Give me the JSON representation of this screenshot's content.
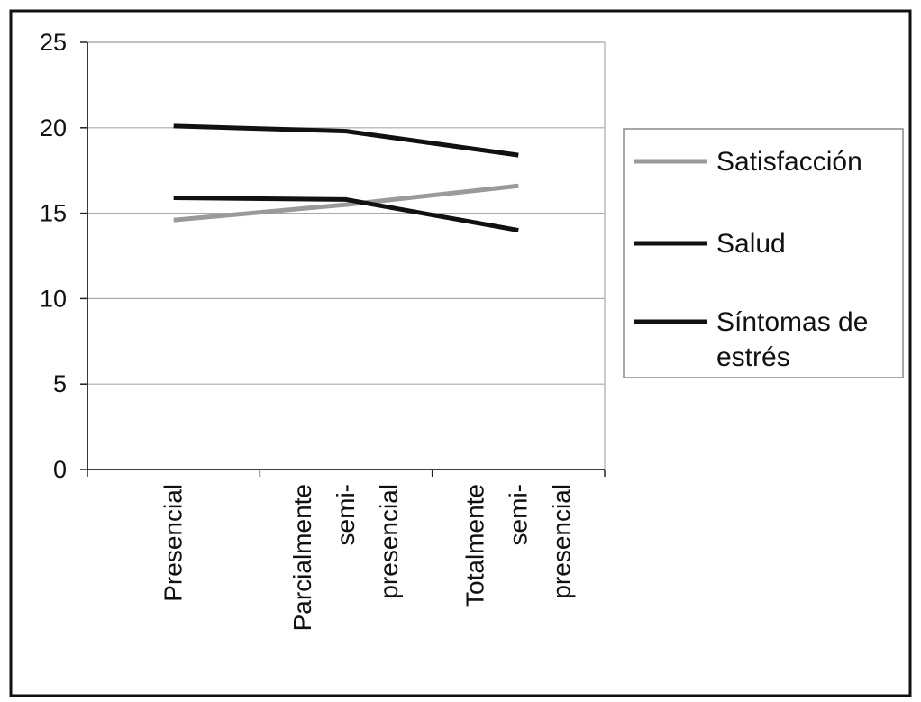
{
  "chart_data": {
    "type": "line",
    "categories": [
      [
        "Presencial"
      ],
      [
        "Parcialmente",
        "semi-",
        "presencial"
      ],
      [
        "Totalmente",
        "semi-",
        "presencial"
      ]
    ],
    "ylim": [
      0,
      25
    ],
    "yticks": [
      "0",
      "5",
      "10",
      "15",
      "20",
      "25"
    ],
    "grid": true,
    "legend_position": "right",
    "series": [
      {
        "name": "Satisfacción",
        "values": [
          14.6,
          15.5,
          16.6
        ],
        "color": "#9a9a9a"
      },
      {
        "name": "Salud",
        "values": [
          20.1,
          19.8,
          18.4
        ],
        "color": "#111111"
      },
      {
        "name": "Síntomas de estrés",
        "legend_lines": [
          "Síntomas de",
          "estrés"
        ],
        "values": [
          15.9,
          15.8,
          14.0
        ],
        "color": "#111111"
      }
    ]
  }
}
